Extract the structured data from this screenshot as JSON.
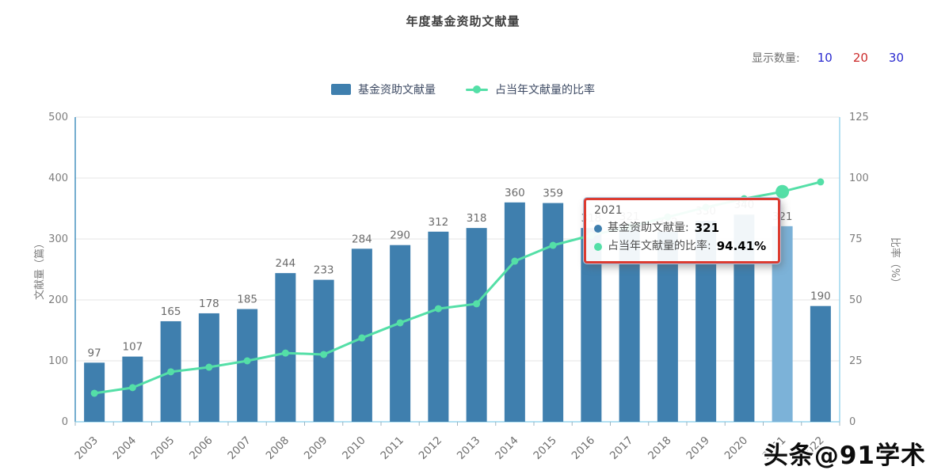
{
  "title": "年度基金资助文献量",
  "display_count": {
    "label": "显示数量:",
    "options": [
      {
        "value": "10",
        "selected": false
      },
      {
        "value": "20",
        "selected": true
      },
      {
        "value": "30",
        "selected": false
      }
    ],
    "link_color": "#2a2ad0",
    "selected_color": "#cc2b2b"
  },
  "legend": {
    "items": [
      {
        "label": "基金资助文献量",
        "type": "bar",
        "color": "#3F7FAE"
      },
      {
        "label": "占当年文献量的比率",
        "type": "line",
        "color": "#54DFA7"
      }
    ]
  },
  "tooltip": {
    "year": "2021",
    "rows": [
      {
        "marker_color": "#3F7FAE",
        "label": "基金资助文献量",
        "value": "321"
      },
      {
        "marker_color": "#54DFA7",
        "label": "占当年文献量的比率",
        "value": "94.41%"
      }
    ],
    "border_color": "#dc3b30"
  },
  "watermark": "头条@91学术",
  "chart_data": {
    "type": "bar",
    "combo": "bar+line dual axis",
    "title": "年度基金资助文献量",
    "categories": [
      "2003",
      "2004",
      "2005",
      "2006",
      "2007",
      "2008",
      "2009",
      "2010",
      "2011",
      "2012",
      "2013",
      "2014",
      "2015",
      "2016",
      "2017",
      "2018",
      "2019",
      "2020",
      "2021",
      "2022"
    ],
    "series": [
      {
        "name": "基金资助文献量",
        "type": "bar",
        "axis": "left",
        "color": "#3F7FAE",
        "highlight": {
          "category": "2021",
          "color": "#7CB2D8"
        },
        "values": [
          97,
          107,
          165,
          178,
          185,
          244,
          233,
          284,
          290,
          312,
          318,
          360,
          359,
          318,
          321,
          312,
          330,
          340,
          321,
          190
        ]
      },
      {
        "name": "占当年文献量的比率",
        "type": "line",
        "axis": "right",
        "unit": "%",
        "color": "#54DFA7",
        "values": [
          11.7,
          14.0,
          20.5,
          22.4,
          25.0,
          28.2,
          27.6,
          34.4,
          40.6,
          46.4,
          48.4,
          65.9,
          72.4,
          76.5,
          80.0,
          84.0,
          88.0,
          91.5,
          94.41,
          98.4
        ]
      }
    ],
    "left_axis": {
      "name": "文献量（篇）",
      "min": 0,
      "max": 500,
      "ticks": [
        0,
        100,
        200,
        300,
        400,
        500
      ]
    },
    "right_axis": {
      "name": "比率（%）",
      "min": 0,
      "max": 125,
      "ticks": [
        0,
        25,
        50,
        75,
        100,
        125
      ]
    },
    "grid": true,
    "legend_position": "top",
    "x_label_rotation": 45
  },
  "colors": {
    "grid_line": "#e6e6e6",
    "left_axis_line": "#2b81b5",
    "right_axis_line": "#8bd0ec",
    "bottom_axis_line": "#85cde9",
    "tick_text": "#7d7d7d",
    "bar_label_text": "#6b6b6b"
  }
}
